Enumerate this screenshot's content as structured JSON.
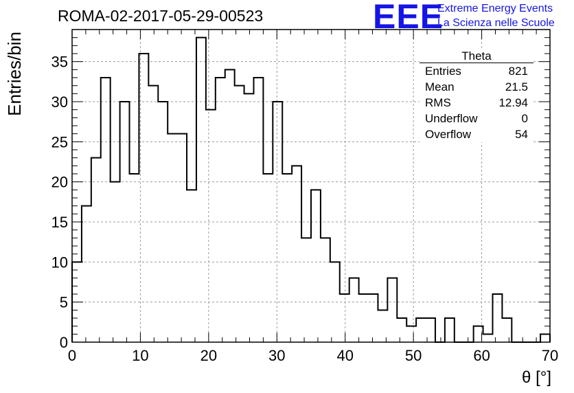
{
  "header": {
    "run_title": "ROMA-02-2017-05-29-00523",
    "logo_text": "EEE",
    "logo_line1": "Extreme Energy Events",
    "logo_line2": "La Scienza nelle Scuole"
  },
  "colors": {
    "logo": "#1414e6",
    "hist": "#000000",
    "grid": "#9a9a9a"
  },
  "stats_box": {
    "title": "Theta",
    "rows": [
      {
        "label": "Entries",
        "value": "821"
      },
      {
        "label": "Mean",
        "value": "21.5"
      },
      {
        "label": "RMS",
        "value": "12.94"
      },
      {
        "label": "Underflow",
        "value": "0"
      },
      {
        "label": "Overflow",
        "value": "54"
      }
    ]
  },
  "chart_data": {
    "type": "histogram",
    "xlabel": "θ [°]",
    "ylabel": "Entries/bin",
    "xlim": [
      0,
      70
    ],
    "ylim": [
      0,
      39
    ],
    "xticks": [
      0,
      10,
      20,
      30,
      40,
      50,
      60,
      70
    ],
    "yticks": [
      0,
      5,
      10,
      15,
      20,
      25,
      30,
      35
    ],
    "grid": true,
    "bin_width": 1.4,
    "bin_edges_start": 0,
    "values": [
      10,
      17,
      23,
      33,
      20,
      30,
      21,
      36,
      32,
      30,
      26,
      26,
      19,
      38,
      29,
      33,
      34,
      32,
      31,
      33,
      21,
      30,
      21,
      22,
      13,
      19,
      13,
      10,
      6,
      8,
      6,
      6,
      4,
      8,
      3,
      2,
      3,
      3,
      0,
      3,
      0,
      0,
      2,
      1,
      6,
      3,
      0,
      0,
      0,
      1
    ]
  }
}
